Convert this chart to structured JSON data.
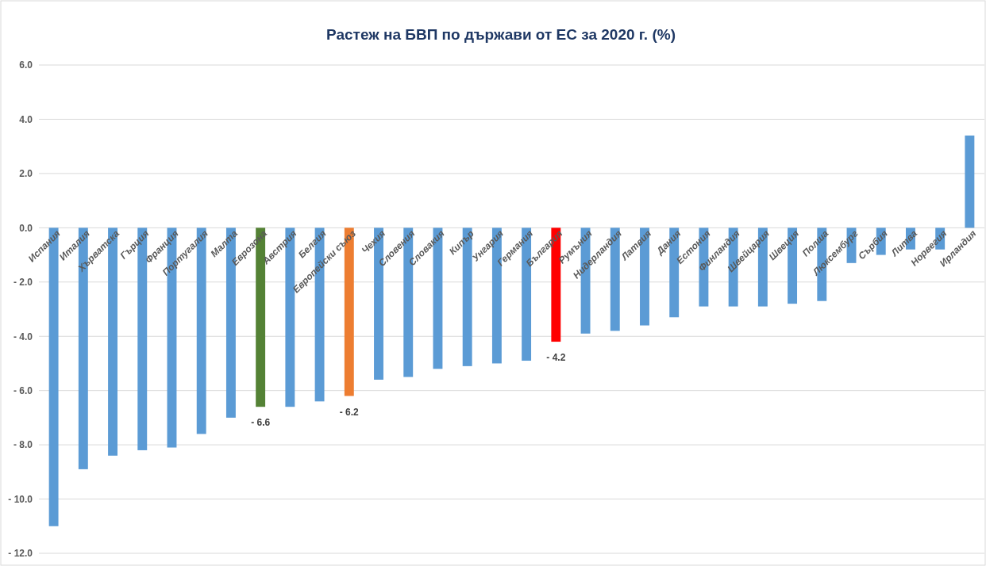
{
  "chart_data": {
    "type": "bar",
    "title": "Растеж на БВП по държави от ЕС за 2020 г. (%)",
    "categories": [
      "Испания",
      "Италия",
      "Хърватска",
      "Гърция",
      "Франция",
      "Португалия",
      "Малта",
      "Еврозона",
      "Австрия",
      "Белгия",
      "Европейски съюз",
      "Чехия",
      "Словения",
      "Словакия",
      "Кипър",
      "Унгария",
      "Германия",
      "България",
      "Румъния",
      "Нидерландия",
      "Латвия",
      "Дания",
      "Естония",
      "Финландия",
      "Швейцария",
      "Швеция",
      "Полша",
      "Люксембург",
      "Сърбия",
      "Литва",
      "Норвегия",
      "Ирландия"
    ],
    "values": [
      -11.0,
      -8.9,
      -8.4,
      -8.2,
      -8.1,
      -7.6,
      -7.0,
      -6.6,
      -6.6,
      -6.4,
      -6.2,
      -5.6,
      -5.5,
      -5.2,
      -5.1,
      -5.0,
      -4.9,
      -4.2,
      -3.9,
      -3.8,
      -3.6,
      -3.3,
      -2.9,
      -2.9,
      -2.9,
      -2.8,
      -2.7,
      -1.3,
      -1.0,
      -0.8,
      -0.8,
      3.4
    ],
    "colors": [
      "#5b9bd5",
      "#5b9bd5",
      "#5b9bd5",
      "#5b9bd5",
      "#5b9bd5",
      "#5b9bd5",
      "#5b9bd5",
      "#548235",
      "#5b9bd5",
      "#5b9bd5",
      "#ed7d31",
      "#5b9bd5",
      "#5b9bd5",
      "#5b9bd5",
      "#5b9bd5",
      "#5b9bd5",
      "#5b9bd5",
      "#ff0000",
      "#5b9bd5",
      "#5b9bd5",
      "#5b9bd5",
      "#5b9bd5",
      "#5b9bd5",
      "#5b9bd5",
      "#5b9bd5",
      "#5b9bd5",
      "#5b9bd5",
      "#5b9bd5",
      "#5b9bd5",
      "#5b9bd5",
      "#5b9bd5",
      "#5b9bd5"
    ],
    "value_labels": [
      null,
      null,
      null,
      null,
      null,
      null,
      null,
      "- 6.6",
      null,
      null,
      "- 6.2",
      null,
      null,
      null,
      null,
      null,
      null,
      "- 4.2",
      null,
      null,
      null,
      null,
      null,
      null,
      null,
      null,
      null,
      null,
      null,
      null,
      null,
      null
    ],
    "ylim": [
      -12,
      6
    ],
    "yticks": [
      {
        "value": -12,
        "label": "- 12.0"
      },
      {
        "value": -10,
        "label": "- 10.0"
      },
      {
        "value": -8,
        "label": "- 8.0"
      },
      {
        "value": -6,
        "label": "- 6.0"
      },
      {
        "value": -4,
        "label": "- 4.0"
      },
      {
        "value": -2,
        "label": "- 2.0"
      },
      {
        "value": 0,
        "label": "0.0"
      },
      {
        "value": 2,
        "label": "2.0"
      },
      {
        "value": 4,
        "label": "4.0"
      },
      {
        "value": 6,
        "label": "6.0"
      }
    ],
    "grid": "y"
  }
}
